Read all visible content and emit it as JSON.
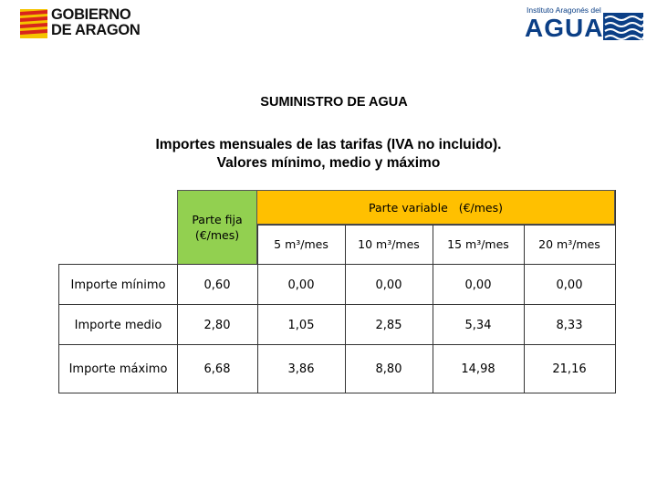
{
  "header": {
    "logo_left_line1": "GOBIERNO",
    "logo_left_line2": "DE ARAGON",
    "logo_right_small": "Instituto Aragonés del",
    "logo_right_main": "AGUA"
  },
  "titles": {
    "main": "SUMINISTRO DE AGUA",
    "subtitle_line1": "Importes mensuales de las tarifas (IVA no incluido).",
    "subtitle_line2": "Valores mínimo, medio y máximo"
  },
  "table": {
    "fixed_header_line1": "Parte fija",
    "fixed_header_line2": "(€/mes)",
    "variable_header": "Parte variable   (€/mes)",
    "variable_columns": [
      "5 m³/mes",
      "10 m³/mes",
      "15 m³/mes",
      "20 m³/mes"
    ],
    "rows": [
      {
        "label": "Importe mínimo",
        "values": [
          "0,60",
          "0,00",
          "0,00",
          "0,00",
          "0,00"
        ]
      },
      {
        "label": "Importe medio",
        "values": [
          "2,80",
          "1,05",
          "2,85",
          "5,34",
          "8,33"
        ]
      },
      {
        "label": "Importe máximo",
        "values": [
          "6,68",
          "3,86",
          "8,80",
          "14,98",
          "21,16"
        ]
      }
    ]
  },
  "colors": {
    "fixed_header_bg": "#92d050",
    "variable_header_bg": "#ffc000",
    "agua_blue": "#0b3f86"
  }
}
